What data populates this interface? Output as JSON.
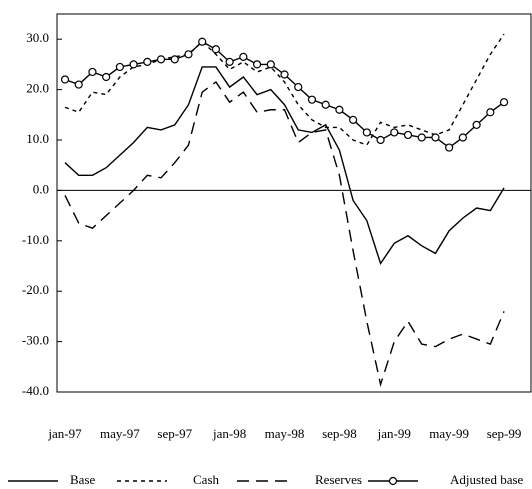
{
  "chart_data": {
    "type": "line",
    "categories": [
      "jan-97",
      null,
      null,
      null,
      "may-97",
      null,
      null,
      null,
      "sep-97",
      null,
      null,
      null,
      "jan-98",
      null,
      null,
      null,
      "may-98",
      null,
      null,
      null,
      "sep-98",
      null,
      null,
      null,
      "jan-99",
      null,
      null,
      null,
      "may-99",
      null,
      null,
      null,
      "sep-99"
    ],
    "series": [
      {
        "name": "Base",
        "color": "#000000",
        "dash": "solid",
        "values": [
          5.5,
          3,
          3,
          4.5,
          7,
          9.5,
          12.5,
          12,
          13,
          17,
          24.5,
          24.5,
          20.5,
          22.5,
          19,
          20,
          17,
          12,
          11.5,
          13,
          8,
          -2,
          -6,
          -14.5,
          -10.5,
          -9,
          -11,
          -12.5,
          -8,
          -5.5,
          -3.5,
          -4,
          0.5
        ]
      },
      {
        "name": "Cash",
        "color": "#000000",
        "dash": "short",
        "values": [
          16.5,
          15.5,
          19.5,
          19,
          22.5,
          24.5,
          25,
          26,
          26.5,
          27,
          29.5,
          27,
          24,
          25.5,
          23.5,
          24.5,
          21.5,
          17,
          14,
          12.5,
          12.5,
          10,
          9,
          13.5,
          12.5,
          13,
          12,
          11,
          12,
          17,
          22,
          27,
          31
        ]
      },
      {
        "name": "Reserves",
        "color": "#000000",
        "dash": "long",
        "values": [
          -1,
          -6.5,
          -7.5,
          -5,
          -2.5,
          0,
          3,
          2.5,
          5.5,
          9,
          19.5,
          21.5,
          17.5,
          19.5,
          15.5,
          16,
          16,
          9.5,
          11.5,
          12,
          3,
          -12,
          -26,
          -38.5,
          -30,
          -26,
          -30.5,
          -31,
          -29.5,
          -28.5,
          -29.5,
          -30.5,
          -24
        ]
      },
      {
        "name": "Adjusted base",
        "color": "#000000",
        "dash": "solid",
        "marker": "circle",
        "values": [
          22,
          21,
          23.5,
          22.5,
          24.5,
          25,
          25.5,
          26,
          26,
          27,
          29.5,
          28,
          25.5,
          26.5,
          25,
          25,
          23,
          20.5,
          18,
          17,
          16,
          14,
          11.5,
          10,
          11.5,
          11,
          10.5,
          10.5,
          8.5,
          10.5,
          13,
          15.5,
          17.5
        ]
      }
    ],
    "ylim": [
      -40,
      35
    ],
    "yticks": [
      {
        "value": -40,
        "label": "-40.0"
      },
      {
        "value": -30,
        "label": "-30.0"
      },
      {
        "value": -20,
        "label": "-20.0"
      },
      {
        "value": -10,
        "label": "-10.0"
      },
      {
        "value": 0,
        "label": "0.0"
      },
      {
        "value": 10,
        "label": "10.0"
      },
      {
        "value": 20,
        "label": "20.0"
      },
      {
        "value": 30,
        "label": "30.0"
      }
    ],
    "legend": "bottom"
  }
}
